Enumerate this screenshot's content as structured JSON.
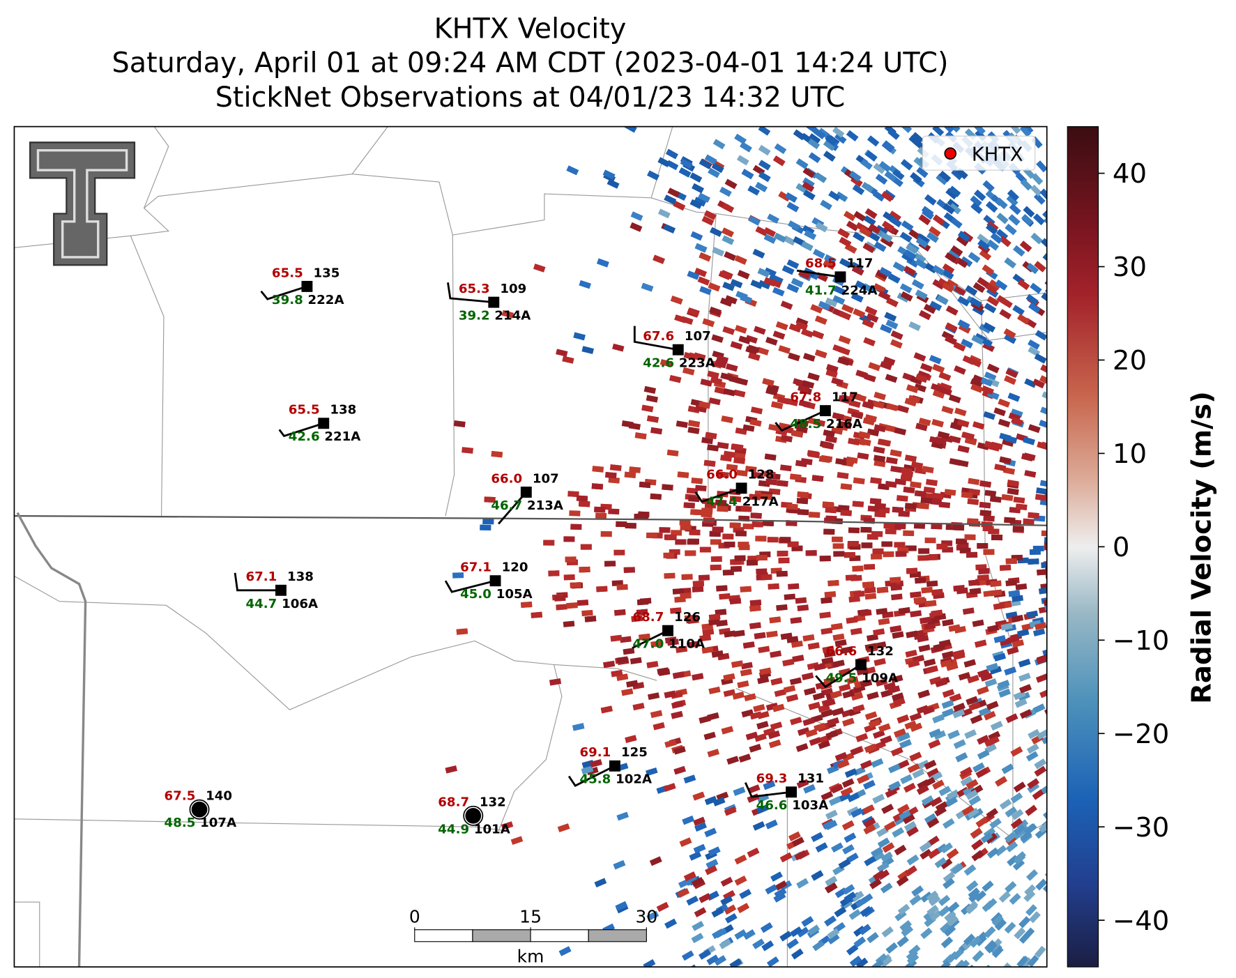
{
  "title": [
    "KHTX Velocity",
    "Saturday, April 01 at 09:24 AM CDT (2023-04-01 14:24 UTC)",
    "StickNet Observations at 04/01/23 14:32 UTC"
  ],
  "legend": "KHTX",
  "colorbar": {
    "label": "Radial Velocity (m/s)",
    "lim": [
      -45,
      45
    ],
    "ticks": [
      40,
      30,
      20,
      10,
      0,
      {
        "value": -10,
        "label": "−10"
      },
      {
        "value": -20,
        "label": "−20"
      },
      {
        "value": -30,
        "label": "−30"
      },
      {
        "value": -40,
        "label": "−40"
      }
    ]
  },
  "scale_bar": {
    "ticks": [
      0,
      15,
      30
    ],
    "unit": "km"
  },
  "stations": [
    {
      "id": "222A",
      "temp": "65.5",
      "dewpoint": "39.8",
      "number": "135"
    },
    {
      "id": "214A",
      "temp": "65.3",
      "dewpoint": "39.2",
      "number": "109"
    },
    {
      "id": "223A",
      "temp": "67.6",
      "dewpoint": "42.6",
      "number": "107"
    },
    {
      "id": "224A",
      "temp": "68.5",
      "dewpoint": "41.7",
      "number": "117"
    },
    {
      "id": "216A",
      "temp": "67.8",
      "dewpoint": "48.5",
      "number": "117"
    },
    {
      "id": "221A",
      "temp": "65.5",
      "dewpoint": "42.6",
      "number": "138"
    },
    {
      "id": "213A",
      "temp": "66.0",
      "dewpoint": "46.7",
      "number": "107"
    },
    {
      "id": "217A",
      "temp": "66.0",
      "dewpoint": "47.4",
      "number": "128"
    },
    {
      "id": "106A",
      "temp": "67.1",
      "dewpoint": "44.7",
      "number": "138"
    },
    {
      "id": "105A",
      "temp": "67.1",
      "dewpoint": "45.0",
      "number": "120"
    },
    {
      "id": "110A",
      "temp": "68.7",
      "dewpoint": "47.0",
      "number": "126"
    },
    {
      "id": "109A",
      "temp": "66.6",
      "dewpoint": "49.5",
      "number": "132"
    },
    {
      "id": "102A",
      "temp": "69.1",
      "dewpoint": "45.8",
      "number": "125"
    },
    {
      "id": "103A",
      "temp": "69.3",
      "dewpoint": "46.6",
      "number": "131"
    },
    {
      "id": "107A",
      "temp": "67.5",
      "dewpoint": "48.5",
      "number": "140"
    },
    {
      "id": "101A",
      "temp": "68.7",
      "dewpoint": "44.9",
      "number": "132"
    }
  ]
}
